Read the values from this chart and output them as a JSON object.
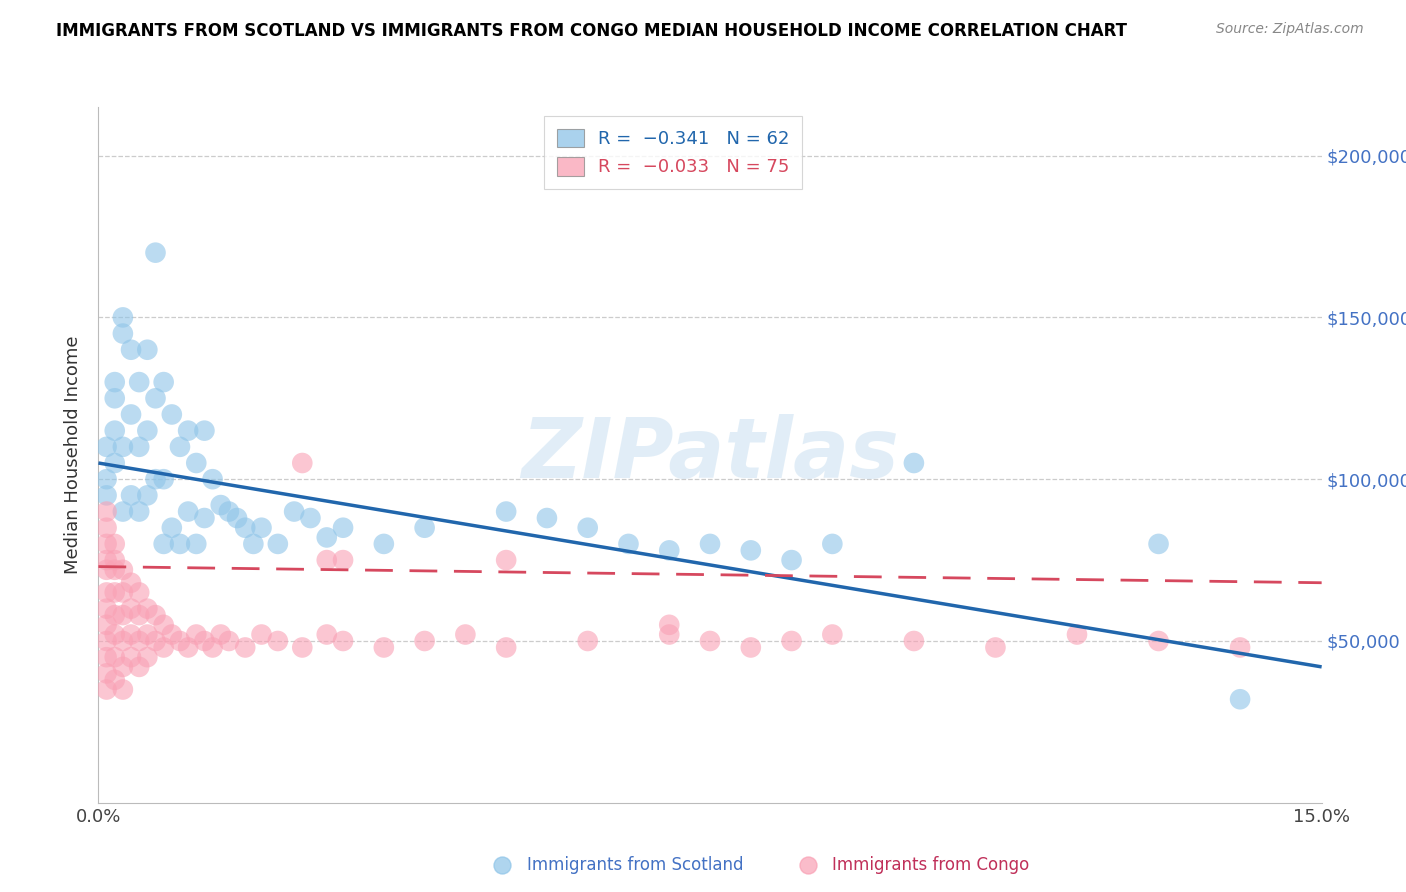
{
  "title": "IMMIGRANTS FROM SCOTLAND VS IMMIGRANTS FROM CONGO MEDIAN HOUSEHOLD INCOME CORRELATION CHART",
  "source": "Source: ZipAtlas.com",
  "ylabel": "Median Household Income",
  "xmin": 0.0,
  "xmax": 0.15,
  "ymin": 0,
  "ymax": 215000,
  "yticks": [
    50000,
    100000,
    150000,
    200000
  ],
  "ytick_labels": [
    "$50,000",
    "$100,000",
    "$150,000",
    "$200,000"
  ],
  "scotland_color": "#8ec4e8",
  "congo_color": "#f9a0b4",
  "regression_scotland_color": "#2166ac",
  "regression_congo_color": "#d6485e",
  "scotland_R": "-0.341",
  "scotland_N": "62",
  "congo_R": "-0.033",
  "congo_N": "75",
  "watermark": "ZIPatlas",
  "scot_x": [
    0.001,
    0.001,
    0.001,
    0.002,
    0.002,
    0.002,
    0.002,
    0.003,
    0.003,
    0.003,
    0.003,
    0.004,
    0.004,
    0.004,
    0.005,
    0.005,
    0.005,
    0.006,
    0.006,
    0.006,
    0.007,
    0.007,
    0.007,
    0.008,
    0.008,
    0.008,
    0.009,
    0.009,
    0.01,
    0.01,
    0.011,
    0.011,
    0.012,
    0.012,
    0.013,
    0.013,
    0.014,
    0.015,
    0.016,
    0.017,
    0.018,
    0.019,
    0.02,
    0.022,
    0.024,
    0.026,
    0.028,
    0.03,
    0.035,
    0.04,
    0.05,
    0.055,
    0.06,
    0.065,
    0.07,
    0.075,
    0.08,
    0.085,
    0.09,
    0.1,
    0.13,
    0.14
  ],
  "scot_y": [
    100000,
    110000,
    95000,
    125000,
    130000,
    105000,
    115000,
    145000,
    150000,
    110000,
    90000,
    120000,
    140000,
    95000,
    130000,
    110000,
    90000,
    140000,
    115000,
    95000,
    170000,
    125000,
    100000,
    130000,
    100000,
    80000,
    120000,
    85000,
    110000,
    80000,
    115000,
    90000,
    105000,
    80000,
    115000,
    88000,
    100000,
    92000,
    90000,
    88000,
    85000,
    80000,
    85000,
    80000,
    90000,
    88000,
    82000,
    85000,
    80000,
    85000,
    90000,
    88000,
    85000,
    80000,
    78000,
    80000,
    78000,
    75000,
    80000,
    105000,
    80000,
    32000
  ],
  "congo_x": [
    0.001,
    0.001,
    0.001,
    0.001,
    0.001,
    0.001,
    0.001,
    0.001,
    0.001,
    0.001,
    0.001,
    0.001,
    0.002,
    0.002,
    0.002,
    0.002,
    0.002,
    0.002,
    0.002,
    0.002,
    0.003,
    0.003,
    0.003,
    0.003,
    0.003,
    0.003,
    0.004,
    0.004,
    0.004,
    0.004,
    0.005,
    0.005,
    0.005,
    0.005,
    0.006,
    0.006,
    0.006,
    0.007,
    0.007,
    0.008,
    0.008,
    0.009,
    0.01,
    0.011,
    0.012,
    0.013,
    0.014,
    0.015,
    0.016,
    0.018,
    0.02,
    0.022,
    0.025,
    0.028,
    0.03,
    0.035,
    0.04,
    0.045,
    0.05,
    0.06,
    0.07,
    0.075,
    0.08,
    0.085,
    0.09,
    0.1,
    0.11,
    0.12,
    0.13,
    0.14,
    0.025,
    0.028,
    0.03,
    0.05,
    0.07
  ],
  "congo_y": [
    90000,
    80000,
    72000,
    65000,
    60000,
    55000,
    50000,
    45000,
    40000,
    35000,
    75000,
    85000,
    80000,
    72000,
    65000,
    58000,
    52000,
    45000,
    38000,
    75000,
    72000,
    65000,
    58000,
    50000,
    42000,
    35000,
    68000,
    60000,
    52000,
    45000,
    65000,
    58000,
    50000,
    42000,
    60000,
    52000,
    45000,
    58000,
    50000,
    55000,
    48000,
    52000,
    50000,
    48000,
    52000,
    50000,
    48000,
    52000,
    50000,
    48000,
    52000,
    50000,
    48000,
    52000,
    50000,
    48000,
    50000,
    52000,
    48000,
    50000,
    52000,
    50000,
    48000,
    50000,
    52000,
    50000,
    48000,
    52000,
    50000,
    48000,
    105000,
    75000,
    75000,
    75000,
    55000
  ]
}
